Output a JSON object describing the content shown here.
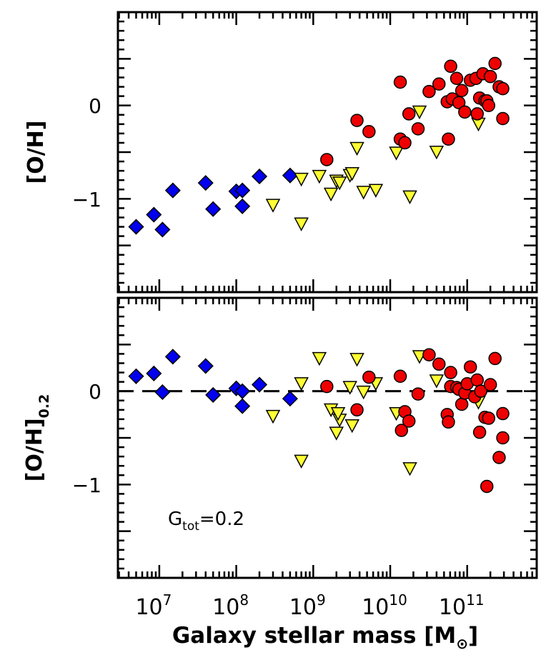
{
  "chart_data": [
    {
      "type": "scatter",
      "panel": "top",
      "ylabel": "[O/H]",
      "x_scale": "log",
      "xlim": [
        2900000.0,
        800000000000.0
      ],
      "ylim": [
        -2.0,
        1.0
      ],
      "y_ticklabels": [
        {
          "value": 0,
          "text": "0"
        },
        {
          "value": -1,
          "text": "−1"
        }
      ],
      "series": [
        {
          "marker": "diamond",
          "color": "#0000ee",
          "points": [
            [
              5000000.0,
              -1.3
            ],
            [
              8500000.0,
              -1.17
            ],
            [
              11000000.0,
              -1.33
            ],
            [
              15000000.0,
              -0.91
            ],
            [
              40000000.0,
              -0.83
            ],
            [
              50000000.0,
              -1.11
            ],
            [
              100000000.0,
              -0.92
            ],
            [
              120000000.0,
              -0.91
            ],
            [
              120000000.0,
              -1.08
            ],
            [
              200000000.0,
              -0.76
            ],
            [
              500000000.0,
              -0.75
            ]
          ]
        },
        {
          "marker": "triangle-down",
          "color": "#ffff33",
          "points": [
            [
              700000000.0,
              -0.78
            ],
            [
              700000000.0,
              -1.26
            ],
            [
              1200000000.0,
              -0.75
            ],
            [
              300000000.0,
              -1.06
            ],
            [
              1700000000.0,
              -0.94
            ],
            [
              2000000000.0,
              -0.8
            ],
            [
              2200000000.0,
              -0.82
            ],
            [
              3000000000.0,
              -0.74
            ],
            [
              3200000000.0,
              -0.72
            ],
            [
              3700000000.0,
              -0.45
            ],
            [
              4500000000.0,
              -0.92
            ],
            [
              6500000000.0,
              -0.9
            ],
            [
              12000000000.0,
              -0.5
            ],
            [
              18000000000.0,
              -0.97
            ],
            [
              24000000000.0,
              -0.06
            ],
            [
              40000000000.0,
              -0.49
            ],
            [
              140000000000.0,
              -0.19
            ]
          ]
        },
        {
          "marker": "circle",
          "color": "#ee0000",
          "points": [
            [
              1500000000.0,
              -0.58
            ],
            [
              3700000000.0,
              -0.16
            ],
            [
              5300000000.0,
              -0.28
            ],
            [
              13500000000.0,
              -0.36
            ],
            [
              15500000000.0,
              -0.4
            ],
            [
              13500000000.0,
              0.25
            ],
            [
              17500000000.0,
              -0.09
            ],
            [
              23000000000.0,
              -0.25
            ],
            [
              32000000000.0,
              0.15
            ],
            [
              43000000000.0,
              0.23
            ],
            [
              55000000000.0,
              0.04
            ],
            [
              57000000000.0,
              -0.36
            ],
            [
              61000000000.0,
              0.42
            ],
            [
              64000000000.0,
              0.07
            ],
            [
              73000000000.0,
              0.29
            ],
            [
              78000000000.0,
              0.03
            ],
            [
              85000000000.0,
              0.16
            ],
            [
              93000000000.0,
              -0.07
            ],
            [
              110000000000.0,
              0.27
            ],
            [
              130000000000.0,
              0.29
            ],
            [
              135000000000.0,
              -0.09
            ],
            [
              145000000000.0,
              0.08
            ],
            [
              160000000000.0,
              0.34
            ],
            [
              170000000000.0,
              0.05
            ],
            [
              180000000000.0,
              0.05
            ],
            [
              190000000000.0,
              0.0
            ],
            [
              200000000000.0,
              0.31
            ],
            [
              230000000000.0,
              0.45
            ],
            [
              260000000000.0,
              0.2
            ],
            [
              290000000000.0,
              0.18
            ],
            [
              290000000000.0,
              -0.14
            ]
          ]
        }
      ]
    },
    {
      "type": "scatter",
      "panel": "bottom",
      "ylabel_main": "[O/H]",
      "ylabel_sub": "0.2",
      "annotation_main": "G",
      "annotation_sub": "tot",
      "annotation_rest": "=0.2",
      "xlabel": "Galaxy stellar mass [M",
      "xlabel_sub": "⊙",
      "xlabel_end": "]",
      "x_scale": "log",
      "xlim": [
        2900000.0,
        800000000000.0
      ],
      "ylim": [
        -2.0,
        1.0
      ],
      "reference_line": {
        "y": 0,
        "style": "dashed"
      },
      "x_ticklabels": [
        {
          "value": 10000000.0,
          "base": "10",
          "exp": "7"
        },
        {
          "value": 100000000.0,
          "base": "10",
          "exp": "8"
        },
        {
          "value": 1000000000.0,
          "base": "10",
          "exp": "9"
        },
        {
          "value": 10000000000.0,
          "base": "10",
          "exp": "10"
        },
        {
          "value": 100000000000.0,
          "base": "10",
          "exp": "11"
        }
      ],
      "y_ticklabels": [
        {
          "value": 0,
          "text": "0"
        },
        {
          "value": -1,
          "text": "−1"
        }
      ],
      "series": [
        {
          "marker": "diamond",
          "color": "#0000ee",
          "points": [
            [
              5000000.0,
              0.16
            ],
            [
              8500000.0,
              0.19
            ],
            [
              11000000.0,
              -0.01
            ],
            [
              15000000.0,
              0.37
            ],
            [
              40000000.0,
              0.27
            ],
            [
              50000000.0,
              -0.04
            ],
            [
              100000000.0,
              0.03
            ],
            [
              120000000.0,
              -0.16
            ],
            [
              120000000.0,
              0.0
            ],
            [
              200000000.0,
              0.07
            ],
            [
              500000000.0,
              -0.08
            ]
          ]
        },
        {
          "marker": "triangle-down",
          "color": "#ffff33",
          "points": [
            [
              700000000.0,
              0.09
            ],
            [
              700000000.0,
              -0.74
            ],
            [
              1200000000.0,
              0.36
            ],
            [
              300000000.0,
              -0.26
            ],
            [
              1700000000.0,
              -0.19
            ],
            [
              2000000000.0,
              -0.44
            ],
            [
              2200000000.0,
              -0.3
            ],
            [
              2100000000.0,
              -0.23
            ],
            [
              3000000000.0,
              0.05
            ],
            [
              3200000000.0,
              -0.36
            ],
            [
              3700000000.0,
              0.35
            ],
            [
              4500000000.0,
              0.0
            ],
            [
              6500000000.0,
              0.09
            ],
            [
              12000000000.0,
              -0.23
            ],
            [
              18000000000.0,
              -0.82
            ],
            [
              24000000000.0,
              0.38
            ],
            [
              40000000000.0,
              0.12
            ],
            [
              140000000000.0,
              -0.11
            ]
          ]
        },
        {
          "marker": "circle",
          "color": "#ee0000",
          "points": [
            [
              1500000000.0,
              0.05
            ],
            [
              3700000000.0,
              -0.2
            ],
            [
              5300000000.0,
              0.15
            ],
            [
              13500000000.0,
              0.16
            ],
            [
              14000000000.0,
              -0.42
            ],
            [
              15500000000.0,
              -0.22
            ],
            [
              17500000000.0,
              -0.32
            ],
            [
              23000000000.0,
              -0.03
            ],
            [
              32000000000.0,
              0.39
            ],
            [
              43000000000.0,
              0.29
            ],
            [
              55000000000.0,
              -0.25
            ],
            [
              57000000000.0,
              -0.33
            ],
            [
              61000000000.0,
              0.05
            ],
            [
              61000000000.0,
              0.2
            ],
            [
              73000000000.0,
              0.04
            ],
            [
              78000000000.0,
              0.02
            ],
            [
              85000000000.0,
              -0.14
            ],
            [
              93000000000.0,
              -0.02
            ],
            [
              100000000000.0,
              0.08
            ],
            [
              110000000000.0,
              0.26
            ],
            [
              125000000000.0,
              -0.06
            ],
            [
              135000000000.0,
              0.12
            ],
            [
              145000000000.0,
              -0.44
            ],
            [
              150000000000.0,
              0.0
            ],
            [
              170000000000.0,
              -0.28
            ],
            [
              180000000000.0,
              -1.02
            ],
            [
              190000000000.0,
              -0.29
            ],
            [
              200000000000.0,
              0.07
            ],
            [
              230000000000.0,
              0.35
            ],
            [
              260000000000.0,
              -0.71
            ],
            [
              290000000000.0,
              -0.24
            ],
            [
              290000000000.0,
              -0.5
            ]
          ]
        }
      ]
    }
  ]
}
